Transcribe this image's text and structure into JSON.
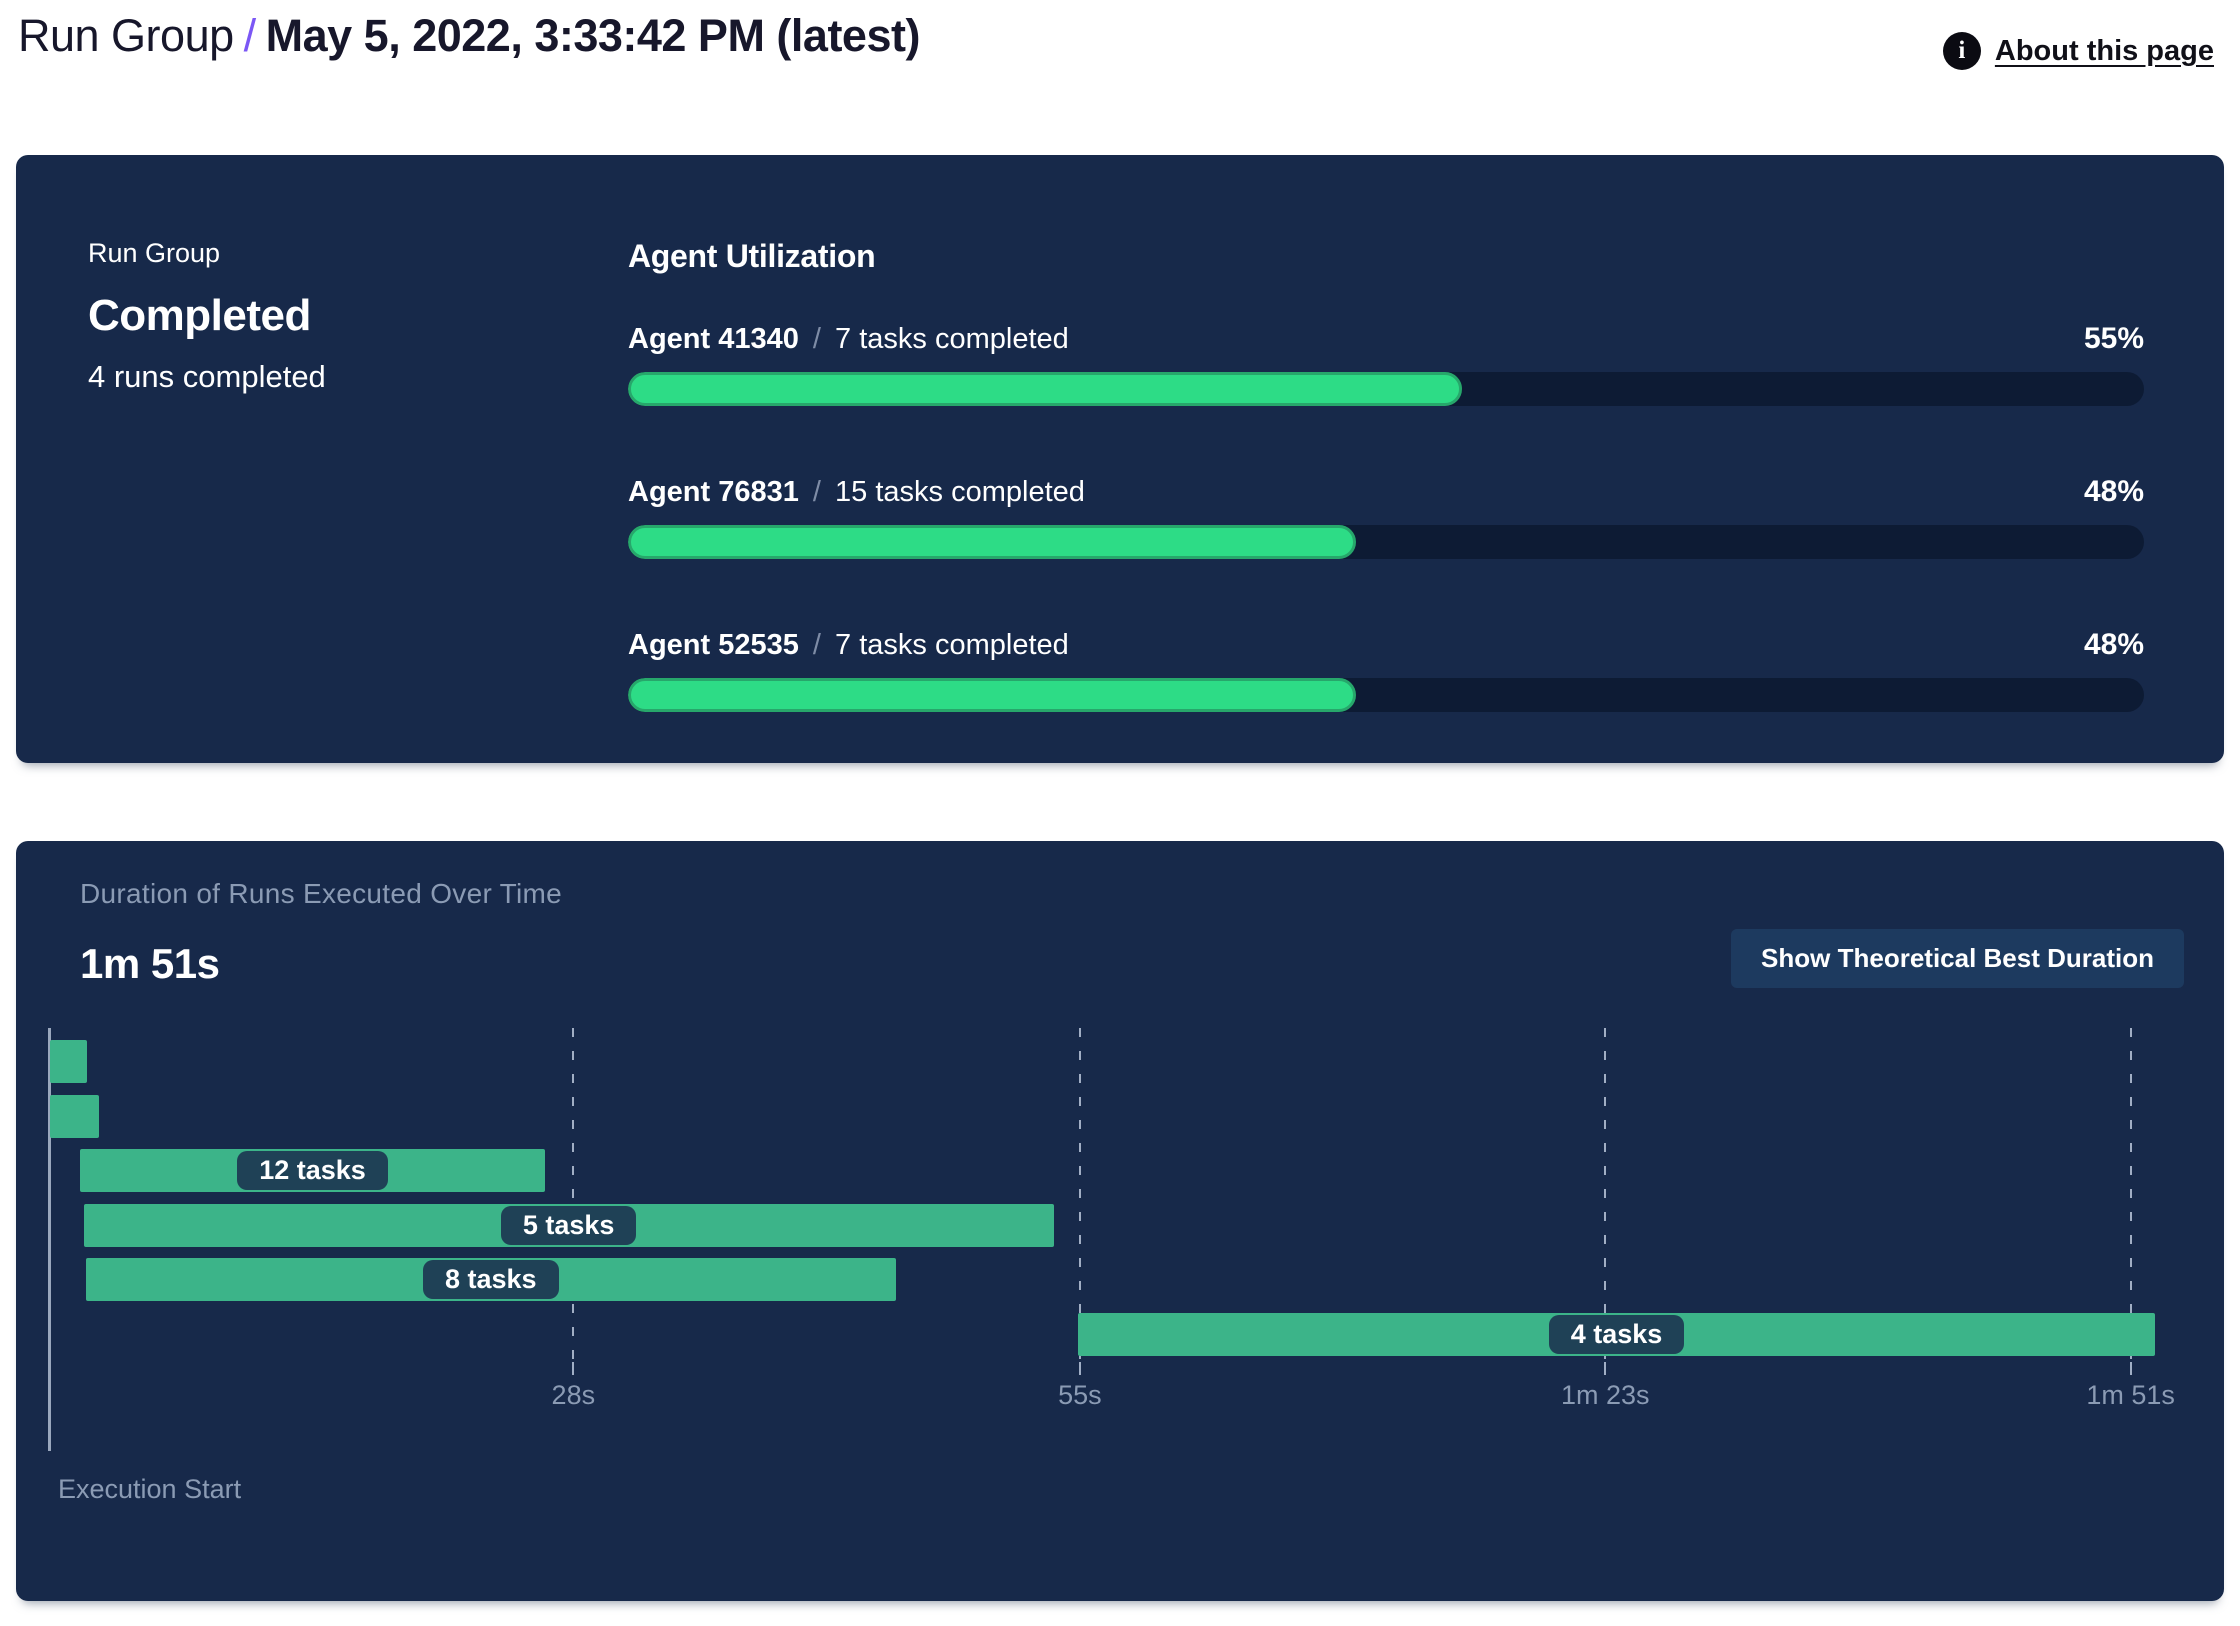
{
  "header": {
    "breadcrumb": "Run Group",
    "separator": "/",
    "title": "May 5, 2022, 3:33:42 PM (latest)",
    "about_link": "About this page",
    "info_icon_glyph": "i"
  },
  "colors": {
    "accent_purple": "#7b57f5",
    "panel_bg": "#17294a",
    "progress_fill": "#2ddc86",
    "progress_fill_border": "#27a76b",
    "progress_track": "#0d1b34",
    "gantt_bar_green": "#3cb489",
    "task_chip_bg": "#1f4156",
    "muted_text": "#8b9bb4",
    "button_bg": "#1d3a5f"
  },
  "run_group_card": {
    "label": "Run Group",
    "status": "Completed",
    "detail": "4 runs completed"
  },
  "agent_utilization": {
    "title": "Agent Utilization",
    "separator": "/",
    "agents": [
      {
        "name": "Agent 41340",
        "tasks": "7 tasks completed",
        "percent": 55
      },
      {
        "name": "Agent 76831",
        "tasks": "15 tasks completed",
        "percent": 48
      },
      {
        "name": "Agent 52535",
        "tasks": "7 tasks completed",
        "percent": 48
      }
    ]
  },
  "duration_section": {
    "title": "Duration of Runs Executed Over Time",
    "total_duration": "1m 51s",
    "button_label": "Show Theoretical Best Duration",
    "axis_label": "Execution Start"
  },
  "chart_data": [
    {
      "type": "bar",
      "title": "Agent Utilization",
      "categories": [
        "Agent 41340",
        "Agent 76831",
        "Agent 52535"
      ],
      "values": [
        55,
        48,
        48
      ],
      "unit": "%",
      "xlim": [
        0,
        100
      ],
      "annotations": [
        "7 tasks completed",
        "15 tasks completed",
        "7 tasks completed"
      ]
    },
    {
      "type": "gantt",
      "title": "Duration of Runs Executed Over Time",
      "total_duration": "1m 51s",
      "xlabel": "Execution Start",
      "x_ticks": [
        "28s",
        "55s",
        "1m 23s",
        "1m 51s"
      ],
      "x_tick_seconds": [
        28,
        55,
        83,
        111
      ],
      "axis_max_s": 112.3,
      "grid": "dashed-vertical",
      "bars": [
        {
          "row": 0,
          "start_s": 0.1,
          "end_s": 2.1,
          "label": ""
        },
        {
          "row": 1,
          "start_s": 0.1,
          "end_s": 2.7,
          "label": ""
        },
        {
          "row": 2,
          "start_s": 1.7,
          "end_s": 26.5,
          "label": "12 tasks"
        },
        {
          "row": 3,
          "start_s": 1.9,
          "end_s": 53.6,
          "label": "5 tasks"
        },
        {
          "row": 4,
          "start_s": 2.0,
          "end_s": 45.2,
          "label": "8 tasks"
        },
        {
          "row": 5,
          "start_s": 54.9,
          "end_s": 112.3,
          "label": "4 tasks"
        }
      ]
    }
  ]
}
